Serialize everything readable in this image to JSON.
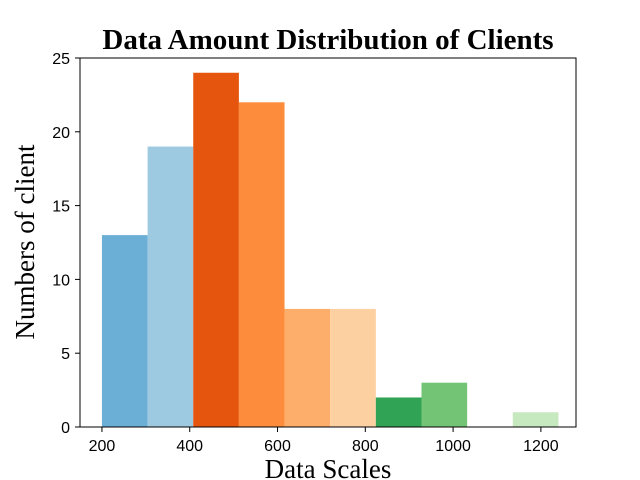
{
  "chart_data": {
    "type": "bar",
    "title": "Data Amount Distribution of Clients",
    "xlabel": "Data Scales",
    "ylabel": "Numbers of client",
    "xlim": [
      150,
      1280
    ],
    "ylim": [
      0,
      25
    ],
    "bin_width": 104,
    "xticks": [
      200,
      400,
      600,
      800,
      1000,
      1200
    ],
    "yticks": [
      0,
      5,
      10,
      15,
      20,
      25
    ],
    "grid": false,
    "bars": [
      {
        "x_start": 200,
        "x_end": 304,
        "value": 13,
        "color": "#6baed6"
      },
      {
        "x_start": 304,
        "x_end": 408,
        "value": 19,
        "color": "#9ecae1"
      },
      {
        "x_start": 408,
        "x_end": 512,
        "value": 24,
        "color": "#e6550d"
      },
      {
        "x_start": 512,
        "x_end": 616,
        "value": 22,
        "color": "#fd8d3c"
      },
      {
        "x_start": 616,
        "x_end": 720,
        "value": 8,
        "color": "#fdae6b"
      },
      {
        "x_start": 720,
        "x_end": 824,
        "value": 8,
        "color": "#fdd0a2"
      },
      {
        "x_start": 824,
        "x_end": 928,
        "value": 2,
        "color": "#31a354"
      },
      {
        "x_start": 928,
        "x_end": 1032,
        "value": 3,
        "color": "#74c476"
      },
      {
        "x_start": 1032,
        "x_end": 1136,
        "value": 0,
        "color": "#a1d99b"
      },
      {
        "x_start": 1136,
        "x_end": 1240,
        "value": 1,
        "color": "#c7e9c0"
      }
    ]
  }
}
